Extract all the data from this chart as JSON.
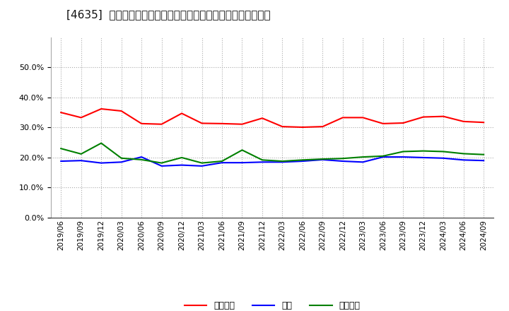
{
  "title": "[4635]  売上債権、在庫、買入債務の総資産に対する比率の推移",
  "ylim": [
    0.0,
    0.6
  ],
  "yticks": [
    0.0,
    0.1,
    0.2,
    0.3,
    0.4,
    0.5
  ],
  "dates": [
    "2019/06",
    "2019/09",
    "2019/12",
    "2020/03",
    "2020/06",
    "2020/09",
    "2020/12",
    "2021/03",
    "2021/06",
    "2021/09",
    "2021/12",
    "2022/03",
    "2022/06",
    "2022/09",
    "2022/12",
    "2023/03",
    "2023/06",
    "2023/09",
    "2023/12",
    "2024/03",
    "2024/06",
    "2024/09"
  ],
  "receivables": [
    0.35,
    0.333,
    0.362,
    0.355,
    0.313,
    0.311,
    0.347,
    0.314,
    0.313,
    0.311,
    0.331,
    0.303,
    0.301,
    0.303,
    0.333,
    0.333,
    0.313,
    0.315,
    0.335,
    0.337,
    0.32,
    0.317
  ],
  "inventory": [
    0.188,
    0.19,
    0.182,
    0.185,
    0.202,
    0.172,
    0.175,
    0.172,
    0.183,
    0.183,
    0.185,
    0.185,
    0.188,
    0.193,
    0.188,
    0.185,
    0.202,
    0.202,
    0.2,
    0.198,
    0.192,
    0.19
  ],
  "payables": [
    0.23,
    0.212,
    0.248,
    0.198,
    0.193,
    0.182,
    0.2,
    0.182,
    0.188,
    0.225,
    0.192,
    0.188,
    0.192,
    0.195,
    0.197,
    0.202,
    0.205,
    0.22,
    0.222,
    0.22,
    0.213,
    0.21
  ],
  "line_color_receivables": "#ff0000",
  "line_color_inventory": "#0000ff",
  "line_color_payables": "#008000",
  "legend_labels": [
    "売上債権",
    "在庫",
    "買入債務"
  ],
  "background_color": "#ffffff",
  "grid_color": "#aaaaaa",
  "title_fontsize": 11
}
